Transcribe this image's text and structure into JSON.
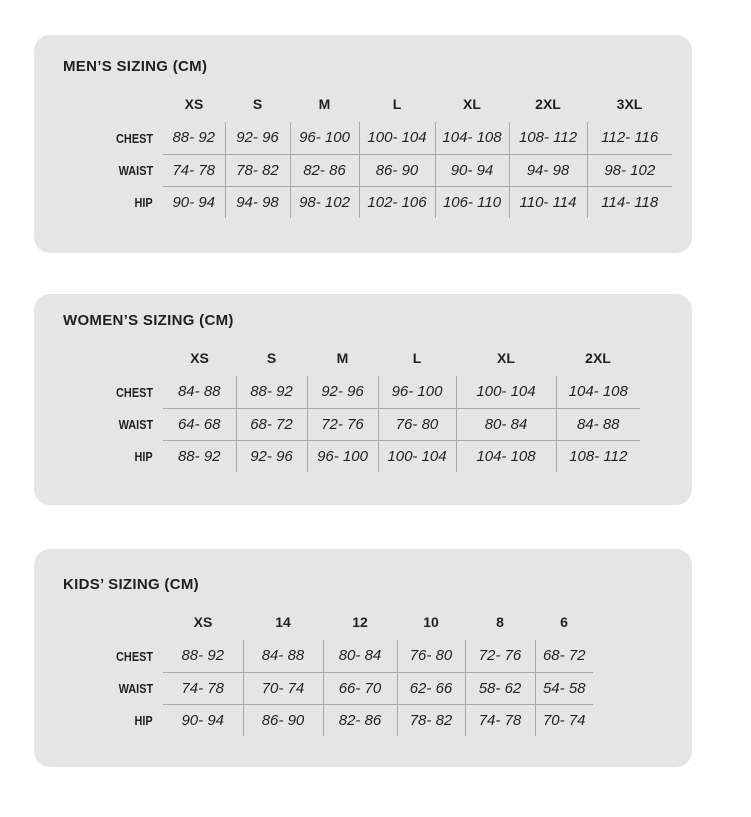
{
  "colors": {
    "page_bg": "#ffffff",
    "panel_bg": "#e5e5e6",
    "text": "#231f20",
    "line": "#a7a9ac"
  },
  "tables": [
    {
      "id": "mens",
      "title": "MEN’S SIZING (CM)",
      "columns": [
        "XS",
        "S",
        "M",
        "L",
        "XL",
        "2XL",
        "3XL"
      ],
      "rows": [
        {
          "label": "CHEST",
          "values": [
            "88- 92",
            "92- 96",
            "96- 100",
            "100- 104",
            "104- 108",
            "108- 112",
            "112- 116"
          ]
        },
        {
          "label": "WAIST",
          "values": [
            "74- 78",
            "78- 82",
            "82- 86",
            "86- 90",
            "90- 94",
            "94- 98",
            "98- 102"
          ]
        },
        {
          "label": "HIP",
          "values": [
            "90- 94",
            "94- 98",
            "98- 102",
            "102- 106",
            "106- 110",
            "110- 114",
            "114- 118"
          ]
        }
      ]
    },
    {
      "id": "womens",
      "title": "WOMEN’S SIZING (CM)",
      "columns": [
        "XS",
        "S",
        "M",
        "L",
        "XL",
        "2XL"
      ],
      "rows": [
        {
          "label": "CHEST",
          "values": [
            "84- 88",
            "88- 92",
            "92- 96",
            "96- 100",
            "100- 104",
            "104- 108"
          ]
        },
        {
          "label": "WAIST",
          "values": [
            "64- 68",
            "68- 72",
            "72- 76",
            "76- 80",
            "80- 84",
            "84- 88"
          ]
        },
        {
          "label": "HIP",
          "values": [
            "88- 92",
            "92- 96",
            "96- 100",
            "100- 104",
            "104- 108",
            "108- 112"
          ]
        }
      ]
    },
    {
      "id": "kids",
      "title": "KIDS’ SIZING (CM)",
      "columns": [
        "XS",
        "14",
        "12",
        "10",
        "8",
        "6"
      ],
      "rows": [
        {
          "label": "CHEST",
          "values": [
            "88- 92",
            "84- 88",
            "80- 84",
            "76- 80",
            "72- 76",
            "68- 72"
          ]
        },
        {
          "label": "WAIST",
          "values": [
            "74- 78",
            "70- 74",
            "66- 70",
            "62- 66",
            "58- 62",
            "54- 58"
          ]
        },
        {
          "label": "HIP",
          "values": [
            "90- 94",
            "86- 90",
            "82- 86",
            "78- 82",
            "74- 78",
            "70- 74"
          ]
        }
      ]
    }
  ]
}
